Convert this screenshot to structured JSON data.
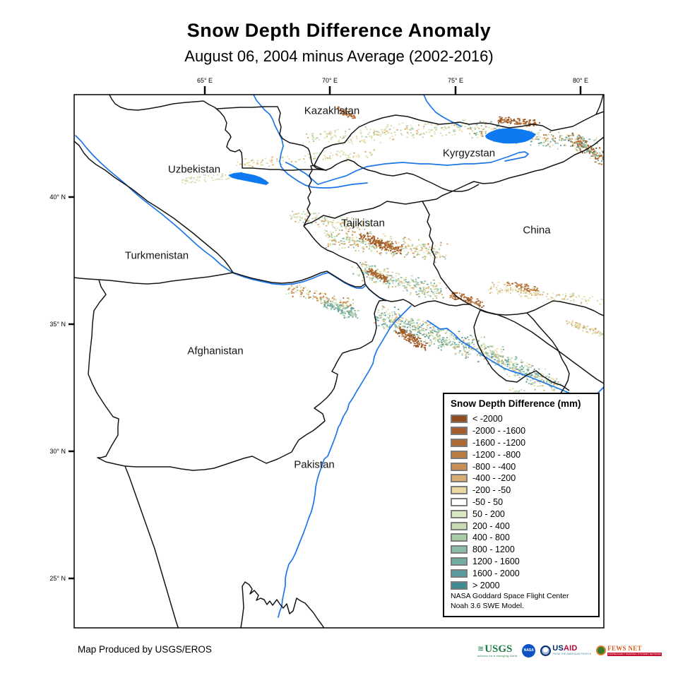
{
  "title": "Snow Depth Difference Anomaly",
  "subtitle": "August 06, 2004 minus Average (2002-2016)",
  "axis": {
    "lon_labels": [
      "65° E",
      "70° E",
      "75° E",
      "80° E"
    ],
    "lat_labels": [
      "40° N",
      "35° N",
      "30° N",
      "25° N"
    ]
  },
  "map": {
    "country_labels": [
      "Kazakhstan",
      "Uzbekistan",
      "Kyrgyzstan",
      "Tajikistan",
      "China",
      "Turkmenistan",
      "Afghanistan",
      "Pakistan"
    ]
  },
  "legend": {
    "title": "Snow Depth Difference (mm)",
    "classes": [
      {
        "label": "< -2000",
        "color": "#8f4d1f"
      },
      {
        "label": "-2000 - -1600",
        "color": "#a55d29"
      },
      {
        "label": "-1600 - -1200",
        "color": "#b06a31"
      },
      {
        "label": "-1200 - -800",
        "color": "#ba7a40"
      },
      {
        "label": "-800 - -400",
        "color": "#c98f52"
      },
      {
        "label": "-400 - -200",
        "color": "#d9ae74"
      },
      {
        "label": "-200 - -50",
        "color": "#ead9a0"
      },
      {
        "label": "-50 - 50",
        "color": "#ffffff"
      },
      {
        "label": "50 - 200",
        "color": "#dce8c2"
      },
      {
        "label": "200 - 400",
        "color": "#c6dcb4"
      },
      {
        "label": "400 - 800",
        "color": "#a8cba8"
      },
      {
        "label": "800 - 1200",
        "color": "#8cbda6"
      },
      {
        "label": "1200 - 1600",
        "color": "#72aba3"
      },
      {
        "label": "1600 - 2000",
        "color": "#5b9a9d"
      },
      {
        "label": "> 2000",
        "color": "#3f8a94"
      }
    ],
    "credit_lines": [
      "NASA Goddard Space Flight Center",
      "Noah 3.6 SWE Model."
    ]
  },
  "footer": {
    "credit": "Map Produced by USGS/EROS",
    "logos": {
      "usgs": {
        "text": "USGS",
        "tagline": "science for a changing world"
      },
      "nasa": {
        "text": "NASA"
      },
      "usaid": {
        "text_us": "US",
        "text_aid": "AID",
        "tagline": "FROM THE AMERICAN PEOPLE"
      },
      "fewsnet": {
        "text": "FEWS NET",
        "tagline": "FAMINE EARLY WARNING SYSTEMS NETWORK"
      }
    }
  },
  "colors": {
    "river_blue": "#1c76e8",
    "lake_blue": "#0f7af0",
    "border_black": "#161616",
    "frame_black": "#000000"
  }
}
